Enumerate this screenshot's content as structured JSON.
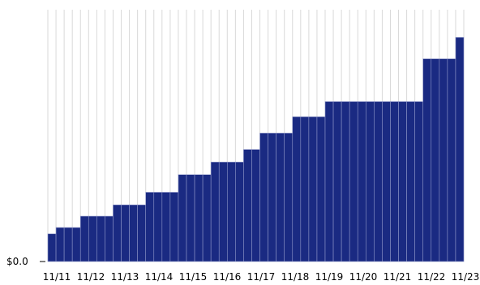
{
  "chart_data": {
    "type": "area",
    "title": "",
    "xlabel": "",
    "ylabel": "",
    "y_tick_labels": [
      "$0.0"
    ],
    "x_tick_labels": [
      "11/11",
      "11/12",
      "11/13",
      "11/14",
      "11/15",
      "11/16",
      "11/17",
      "11/18",
      "11/19",
      "11/20",
      "11/21",
      "11/22",
      "11/23"
    ],
    "grid": "vertical",
    "ylim": [
      0,
      100
    ],
    "series": [
      {
        "color": "#1a2a82",
        "edge_color": "#8e96c8",
        "values": [
          11,
          13.5,
          13.5,
          13.5,
          18,
          18,
          18,
          18,
          22.5,
          22.5,
          22.5,
          22.5,
          27.5,
          27.5,
          27.5,
          27.5,
          34.5,
          34.5,
          34.5,
          34.5,
          39.5,
          39.5,
          39.5,
          39.5,
          44.5,
          44.5,
          51,
          51,
          51,
          51,
          57.5,
          57.5,
          57.5,
          57.5,
          63.5,
          63.5,
          63.5,
          63.5,
          63.5,
          63.5,
          63.5,
          63.5,
          63.5,
          63.5,
          63.5,
          63.5,
          80.5,
          80.5,
          80.5,
          80.5,
          89
        ]
      }
    ]
  }
}
